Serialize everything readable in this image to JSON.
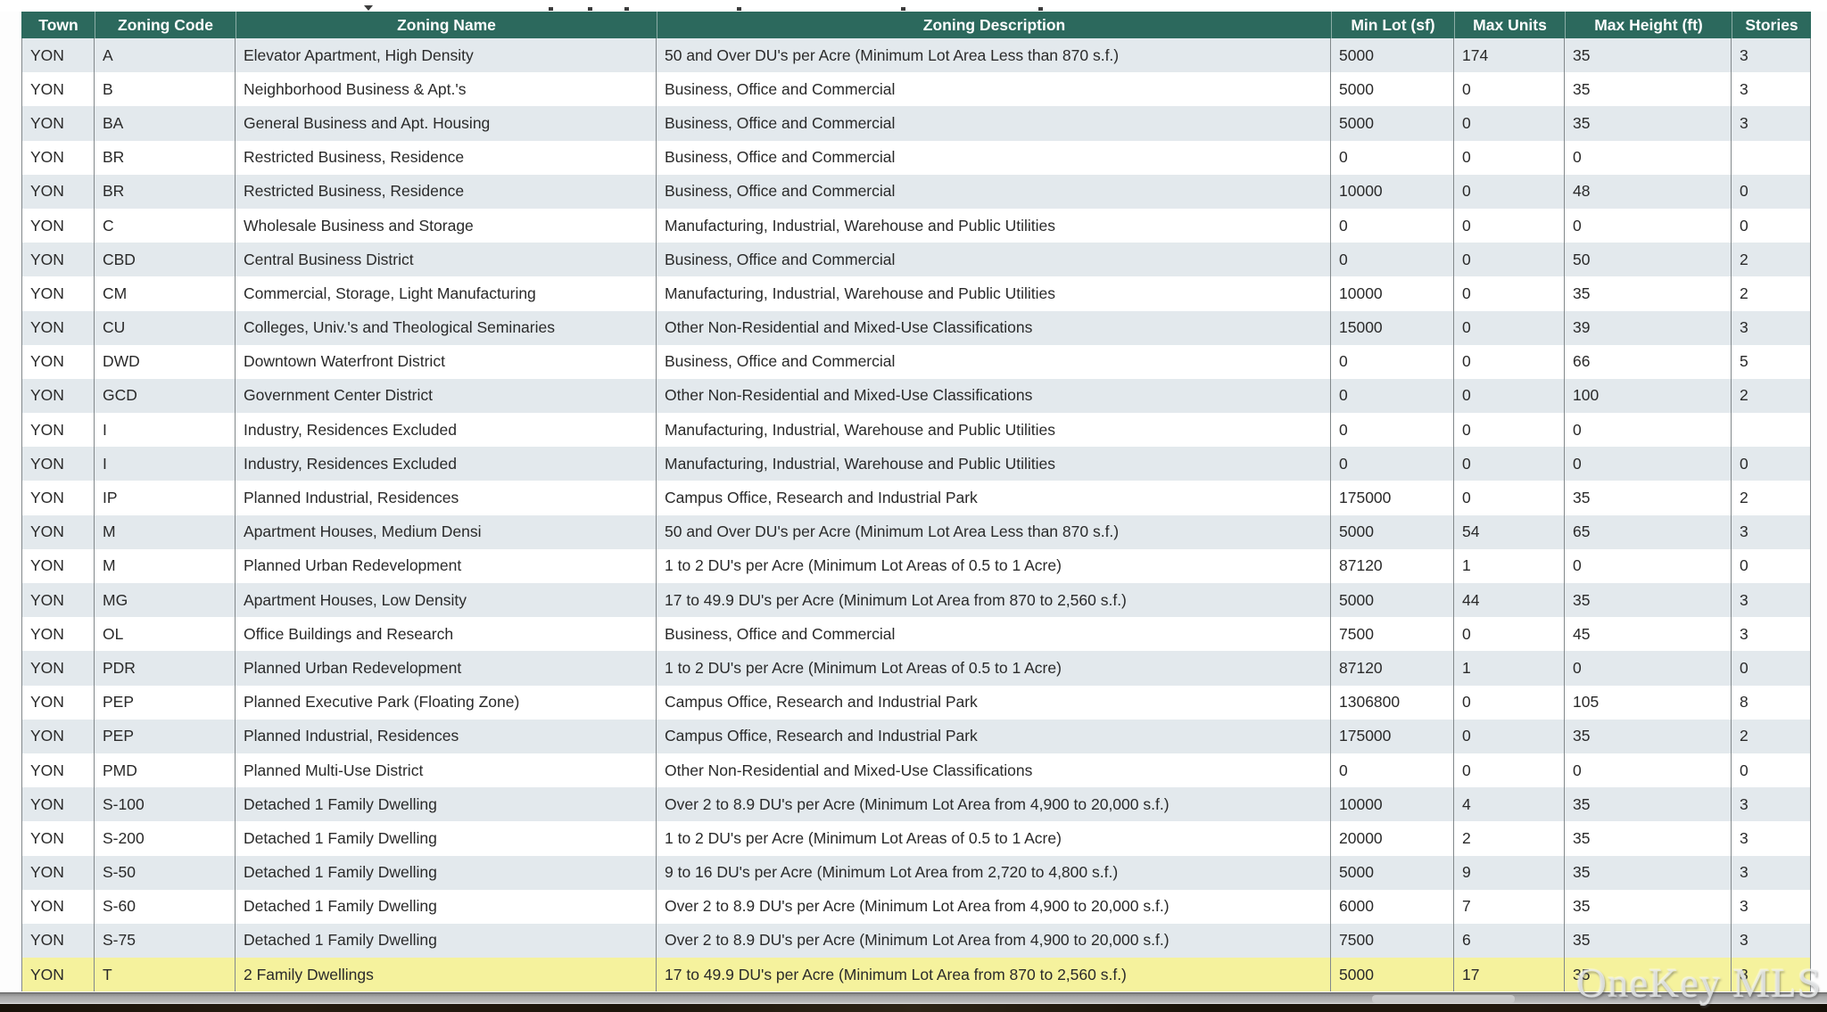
{
  "table": {
    "columns": [
      "Town",
      "Zoning Code",
      "Zoning Name",
      "Zoning Description",
      "Min Lot (sf)",
      "Max Units",
      "Max Height (ft)",
      "Stories"
    ],
    "rows": [
      {
        "town": "YON",
        "code": "A",
        "name": "Elevator Apartment, High Density",
        "description": "50 and Over DU's per Acre (Minimum Lot Area Less than 870 s.f.)",
        "min_lot": "5000",
        "max_units": "174",
        "max_height": "35",
        "stories": "3"
      },
      {
        "town": "YON",
        "code": "B",
        "name": "Neighborhood Business & Apt.'s",
        "description": "Business, Office and Commercial",
        "min_lot": "5000",
        "max_units": "0",
        "max_height": "35",
        "stories": "3"
      },
      {
        "town": "YON",
        "code": "BA",
        "name": "General Business and Apt. Housing",
        "description": "Business, Office and Commercial",
        "min_lot": "5000",
        "max_units": "0",
        "max_height": "35",
        "stories": "3"
      },
      {
        "town": "YON",
        "code": "BR",
        "name": "Restricted Business, Residence",
        "description": "Business, Office and Commercial",
        "min_lot": "0",
        "max_units": "0",
        "max_height": "0",
        "stories": ""
      },
      {
        "town": "YON",
        "code": "BR",
        "name": "Restricted Business, Residence",
        "description": "Business, Office and Commercial",
        "min_lot": "10000",
        "max_units": "0",
        "max_height": "48",
        "stories": "0"
      },
      {
        "town": "YON",
        "code": "C",
        "name": "Wholesale Business and Storage",
        "description": "Manufacturing, Industrial, Warehouse and Public Utilities",
        "min_lot": "0",
        "max_units": "0",
        "max_height": "0",
        "stories": "0"
      },
      {
        "town": "YON",
        "code": "CBD",
        "name": "Central Business District",
        "description": "Business, Office and Commercial",
        "min_lot": "0",
        "max_units": "0",
        "max_height": "50",
        "stories": "2"
      },
      {
        "town": "YON",
        "code": "CM",
        "name": "Commercial, Storage, Light Manufacturing",
        "description": "Manufacturing, Industrial, Warehouse and Public Utilities",
        "min_lot": "10000",
        "max_units": "0",
        "max_height": "35",
        "stories": "2"
      },
      {
        "town": "YON",
        "code": "CU",
        "name": "Colleges, Univ.'s and Theological Seminaries",
        "description": "Other Non-Residential and Mixed-Use Classifications",
        "min_lot": "15000",
        "max_units": "0",
        "max_height": "39",
        "stories": "3"
      },
      {
        "town": "YON",
        "code": "DWD",
        "name": "Downtown Waterfront District",
        "description": "Business, Office and Commercial",
        "min_lot": "0",
        "max_units": "0",
        "max_height": "66",
        "stories": "5"
      },
      {
        "town": "YON",
        "code": "GCD",
        "name": "Government Center District",
        "description": "Other Non-Residential and Mixed-Use Classifications",
        "min_lot": "0",
        "max_units": "0",
        "max_height": "100",
        "stories": "2"
      },
      {
        "town": "YON",
        "code": "I",
        "name": "Industry, Residences Excluded",
        "description": "Manufacturing, Industrial, Warehouse and Public Utilities",
        "min_lot": "0",
        "max_units": "0",
        "max_height": "0",
        "stories": ""
      },
      {
        "town": "YON",
        "code": "I",
        "name": "Industry, Residences Excluded",
        "description": "Manufacturing, Industrial, Warehouse and Public Utilities",
        "min_lot": "0",
        "max_units": "0",
        "max_height": "0",
        "stories": "0"
      },
      {
        "town": "YON",
        "code": "IP",
        "name": "Planned Industrial, Residences",
        "description": "Campus Office, Research and Industrial Park",
        "min_lot": "175000",
        "max_units": "0",
        "max_height": "35",
        "stories": "2"
      },
      {
        "town": "YON",
        "code": "M",
        "name": "Apartment Houses, Medium Densi",
        "description": "50 and Over DU's per Acre (Minimum Lot Area Less than 870 s.f.)",
        "min_lot": "5000",
        "max_units": "54",
        "max_height": "65",
        "stories": "3"
      },
      {
        "town": "YON",
        "code": "M",
        "name": "Planned Urban Redevelopment",
        "description": "1 to 2 DU's per Acre (Minimum Lot Areas of 0.5 to 1 Acre)",
        "min_lot": "87120",
        "max_units": "1",
        "max_height": "0",
        "stories": "0"
      },
      {
        "town": "YON",
        "code": "MG",
        "name": "Apartment Houses, Low Density",
        "description": "17 to 49.9 DU's per Acre (Minimum Lot Area from 870 to 2,560 s.f.)",
        "min_lot": "5000",
        "max_units": "44",
        "max_height": "35",
        "stories": "3"
      },
      {
        "town": "YON",
        "code": "OL",
        "name": "Office Buildings and Research",
        "description": "Business, Office and Commercial",
        "min_lot": "7500",
        "max_units": "0",
        "max_height": "45",
        "stories": "3"
      },
      {
        "town": "YON",
        "code": "PDR",
        "name": "Planned Urban Redevelopment",
        "description": "1 to 2 DU's per Acre (Minimum Lot Areas of 0.5 to 1 Acre)",
        "min_lot": "87120",
        "max_units": "1",
        "max_height": "0",
        "stories": "0"
      },
      {
        "town": "YON",
        "code": "PEP",
        "name": "Planned Executive Park (Floating Zone)",
        "description": "Campus Office, Research and Industrial Park",
        "min_lot": "1306800",
        "max_units": "0",
        "max_height": "105",
        "stories": "8"
      },
      {
        "town": "YON",
        "code": "PEP",
        "name": "Planned Industrial, Residences",
        "description": "Campus Office, Research and Industrial Park",
        "min_lot": "175000",
        "max_units": "0",
        "max_height": "35",
        "stories": "2"
      },
      {
        "town": "YON",
        "code": "PMD",
        "name": "Planned Multi-Use District",
        "description": "Other Non-Residential and Mixed-Use Classifications",
        "min_lot": "0",
        "max_units": "0",
        "max_height": "0",
        "stories": "0"
      },
      {
        "town": "YON",
        "code": "S-100",
        "name": "Detached 1 Family Dwelling",
        "description": "Over 2 to 8.9 DU's per Acre (Minimum Lot Area from 4,900 to 20,000 s.f.)",
        "min_lot": "10000",
        "max_units": "4",
        "max_height": "35",
        "stories": "3"
      },
      {
        "town": "YON",
        "code": "S-200",
        "name": "Detached 1 Family Dwelling",
        "description": "1 to 2 DU's per Acre (Minimum Lot Areas of 0.5 to 1 Acre)",
        "min_lot": "20000",
        "max_units": "2",
        "max_height": "35",
        "stories": "3"
      },
      {
        "town": "YON",
        "code": "S-50",
        "name": "Detached 1 Family Dwelling",
        "description": "9 to 16 DU's per Acre (Minimum Lot Area from 2,720 to 4,800 s.f.)",
        "min_lot": "5000",
        "max_units": "9",
        "max_height": "35",
        "stories": "3"
      },
      {
        "town": "YON",
        "code": "S-60",
        "name": "Detached 1 Family Dwelling",
        "description": "Over 2 to 8.9 DU's per Acre (Minimum Lot Area from 4,900 to 20,000 s.f.)",
        "min_lot": "6000",
        "max_units": "7",
        "max_height": "35",
        "stories": "3"
      },
      {
        "town": "YON",
        "code": "S-75",
        "name": "Detached 1 Family Dwelling",
        "description": "Over 2 to 8.9 DU's per Acre (Minimum Lot Area from 4,900 to 20,000 s.f.)",
        "min_lot": "7500",
        "max_units": "6",
        "max_height": "35",
        "stories": "3"
      },
      {
        "town": "YON",
        "code": "T",
        "name": "2 Family Dwellings",
        "description": "17 to 49.9 DU's per Acre (Minimum Lot Area from 870 to 2,560 s.f.)",
        "min_lot": "5000",
        "max_units": "17",
        "max_height": "35",
        "stories": "3",
        "highlighted": true
      }
    ]
  },
  "watermark": {
    "text": "OneKey MLS"
  },
  "colors": {
    "header_bg": "#2c695d",
    "header_text": "#ffffff",
    "stripe_bg": "#e3e9ed",
    "highlight_bg": "#f5f29d",
    "border": "#82888b",
    "body_text": "#2a2a2a"
  }
}
